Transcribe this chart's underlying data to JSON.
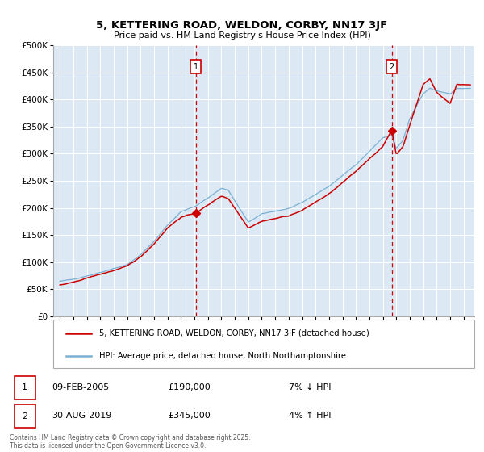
{
  "title": "5, KETTERING ROAD, WELDON, CORBY, NN17 3JF",
  "subtitle": "Price paid vs. HM Land Registry's House Price Index (HPI)",
  "legend_line1": "5, KETTERING ROAD, WELDON, CORBY, NN17 3JF (detached house)",
  "legend_line2": "HPI: Average price, detached house, North Northamptonshire",
  "transaction1_date": "09-FEB-2005",
  "transaction1_price": "£190,000",
  "transaction1_hpi": "7% ↓ HPI",
  "transaction2_date": "30-AUG-2019",
  "transaction2_price": "£345,000",
  "transaction2_hpi": "4% ↑ HPI",
  "footer": "Contains HM Land Registry data © Crown copyright and database right 2025.\nThis data is licensed under the Open Government Licence v3.0.",
  "plot_bg_color": "#dce9f5",
  "hpi_color": "#7ab0d4",
  "price_color": "#cc0000",
  "ylim_min": 0,
  "ylim_max": 500000,
  "yticks": [
    0,
    50000,
    100000,
    150000,
    200000,
    250000,
    300000,
    350000,
    400000,
    450000,
    500000
  ],
  "transaction1_year": 2005.1,
  "transaction2_year": 2019.67,
  "xmin": 1994.5,
  "xmax": 2025.8
}
